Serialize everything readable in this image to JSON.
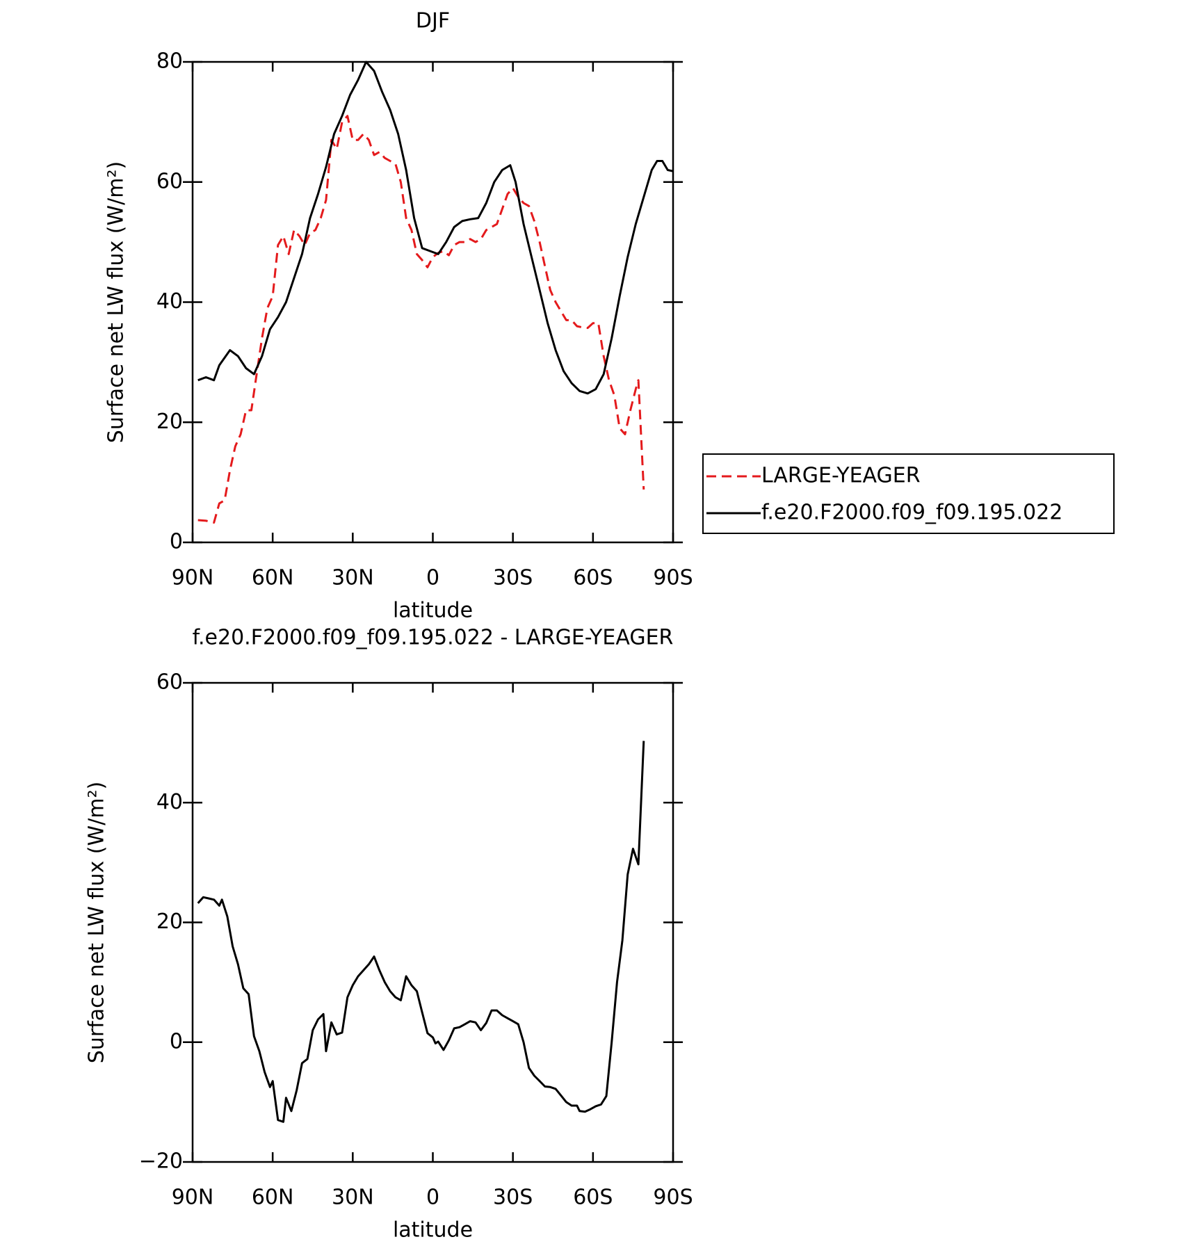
{
  "chart_data": [
    {
      "type": "line",
      "title": "DJF",
      "xlabel": "latitude",
      "ylabel": "Surface net LW flux (W/m²)",
      "xlim": [
        90,
        -90
      ],
      "xticks": [
        {
          "value": 90,
          "label": "90N"
        },
        {
          "value": 60,
          "label": "60N"
        },
        {
          "value": 30,
          "label": "30N"
        },
        0,
        {
          "value": -30,
          "label": "30S"
        },
        {
          "value": -60,
          "label": "60S"
        },
        {
          "value": -90,
          "label": "90S"
        }
      ],
      "ylim": [
        0,
        80
      ],
      "yticks": [
        0,
        20,
        40,
        60,
        80
      ],
      "legend": "right",
      "series": [
        {
          "name": "LARGE-YEAGER",
          "color": "#e41a1c",
          "dashed": true,
          "x": [
            88,
            85,
            82,
            80,
            78,
            76,
            74,
            72,
            70,
            68,
            66,
            64,
            62,
            60,
            58,
            56,
            54,
            52,
            50,
            48,
            46,
            44,
            42,
            40,
            38,
            36,
            34,
            32,
            30,
            28,
            26,
            24,
            22,
            20,
            18,
            16,
            14,
            12,
            10,
            8,
            6,
            4,
            2,
            0,
            -2,
            -4,
            -6,
            -8,
            -10,
            -12,
            -14,
            -16,
            -18,
            -20,
            -22,
            -24,
            -26,
            -28,
            -30,
            -32,
            -34,
            -36,
            -38,
            -40,
            -42,
            -44,
            -46,
            -48,
            -50,
            -52,
            -54,
            -56,
            -58,
            -60,
            -62,
            -64,
            -66,
            -68,
            -70,
            -72,
            -74,
            -76,
            -77,
            -79
          ],
          "values": [
            3.7,
            3.6,
            3.3,
            6.5,
            7,
            12,
            16,
            18,
            22,
            22,
            28,
            34,
            39,
            41,
            49.5,
            51,
            48,
            52,
            51,
            49.5,
            51.5,
            52,
            54,
            57,
            67,
            65.5,
            70,
            71,
            67,
            67,
            68,
            67,
            64.5,
            65,
            64,
            63.5,
            63,
            60,
            54,
            52,
            48,
            47,
            45.8,
            47.5,
            48.2,
            48.5,
            47.8,
            49.5,
            50,
            50,
            50.5,
            50,
            50.5,
            52,
            52.5,
            53,
            55.5,
            58,
            59,
            57.5,
            56.5,
            56,
            53.5,
            50,
            46,
            42,
            40,
            38.5,
            37,
            37,
            36,
            35.8,
            35.7,
            36.5,
            36.5,
            31,
            27,
            24.5,
            19,
            18,
            22,
            25.5,
            27,
            8.8
          ]
        },
        {
          "name": "f.e20.F2000.f09_f09.195.022",
          "color": "#000000",
          "dashed": false,
          "x": [
            88,
            85,
            82,
            80,
            76,
            73,
            70,
            67,
            64,
            61,
            58,
            55,
            52,
            49,
            46,
            43,
            40,
            37,
            34,
            31,
            28,
            25,
            22,
            19,
            16,
            13,
            10,
            7,
            4,
            1,
            -2,
            -5,
            -8,
            -11,
            -14,
            -17,
            -20,
            -23,
            -26,
            -29,
            -31,
            -34,
            -37,
            -40,
            -43,
            -46,
            -49,
            -52,
            -55,
            -58,
            -61,
            -64,
            -67,
            -70,
            -73,
            -76,
            -79,
            -82,
            -84,
            -86,
            -88,
            -90
          ],
          "values": [
            27,
            27.5,
            27,
            29.5,
            32,
            31,
            29,
            28,
            31,
            35.5,
            37.5,
            40,
            44,
            48,
            54,
            58,
            62.5,
            68,
            71,
            74.5,
            77,
            80,
            78.5,
            75,
            72,
            68,
            62,
            54,
            49,
            48.5,
            48,
            50,
            52.5,
            53.5,
            53.8,
            54,
            56.5,
            60,
            62,
            62.8,
            60,
            53,
            47.5,
            42,
            36.5,
            32,
            28.5,
            26.5,
            25.2,
            24.8,
            25.5,
            28,
            34,
            41,
            47.5,
            53,
            57.5,
            62,
            63.5,
            63.5,
            62,
            61.8
          ]
        }
      ]
    },
    {
      "type": "line",
      "title": "f.e20.F2000.f09_f09.195.022 - LARGE-YEAGER",
      "xlabel": "latitude",
      "ylabel": "Surface net LW flux (W/m²)",
      "xlim": [
        90,
        -90
      ],
      "xticks": [
        {
          "value": 90,
          "label": "90N"
        },
        {
          "value": 60,
          "label": "60N"
        },
        {
          "value": 30,
          "label": "30N"
        },
        0,
        {
          "value": -30,
          "label": "30S"
        },
        {
          "value": -60,
          "label": "60S"
        },
        {
          "value": -90,
          "label": "90S"
        }
      ],
      "ylim": [
        -20,
        60
      ],
      "yticks": [
        {
          "value": -20,
          "label": "−20"
        },
        0,
        20,
        40,
        60
      ],
      "series": [
        {
          "color": "#000000",
          "dashed": false,
          "x": [
            88,
            86,
            84,
            82,
            80,
            79,
            77,
            75,
            73,
            71,
            69,
            67,
            65,
            63,
            61,
            60,
            58,
            56,
            55,
            53,
            51,
            49,
            47,
            45,
            43,
            41,
            40,
            38,
            36,
            34,
            32,
            30,
            28,
            26,
            24,
            22,
            20,
            18,
            16,
            14,
            12,
            10,
            8,
            6,
            4,
            2,
            0,
            -1,
            -2,
            -4,
            -6,
            -8,
            -10,
            -12,
            -14,
            -16,
            -18,
            -20,
            -22,
            -24,
            -26,
            -28,
            -30,
            -32,
            -34,
            -36,
            -38,
            -40,
            -42,
            -44,
            -46,
            -48,
            -50,
            -52,
            -54,
            -55,
            -57,
            -59,
            -61,
            -63,
            -65,
            -67,
            -69,
            -71,
            -73,
            -75,
            -77,
            -79
          ],
          "values": [
            23.2,
            24.2,
            24,
            23.8,
            22.8,
            23.8,
            21,
            16,
            13,
            9,
            8,
            1,
            -1.5,
            -5,
            -7.5,
            -6.5,
            -13,
            -13.3,
            -9.3,
            -11.5,
            -8,
            -3.5,
            -2.8,
            2,
            3.8,
            4.7,
            -1.5,
            3.3,
            1.3,
            1.6,
            7.5,
            9.5,
            11,
            12,
            13,
            14.3,
            12,
            10,
            8.5,
            7.5,
            7,
            11,
            9.5,
            8.5,
            5,
            1.5,
            0.8,
            -0.2,
            0.1,
            -1.3,
            0.3,
            2.3,
            2.5,
            3,
            3.5,
            3.3,
            2,
            3.2,
            5.3,
            5.3,
            4.5,
            4,
            3.5,
            3,
            0,
            -4.3,
            -5.6,
            -6.5,
            -7.4,
            -7.5,
            -7.8,
            -8.9,
            -10,
            -10.6,
            -10.6,
            -11.5,
            -11.6,
            -11.2,
            -10.7,
            -10.4,
            -9,
            0,
            10,
            17,
            28,
            32.3,
            29.7,
            50.3
          ]
        }
      ]
    }
  ]
}
